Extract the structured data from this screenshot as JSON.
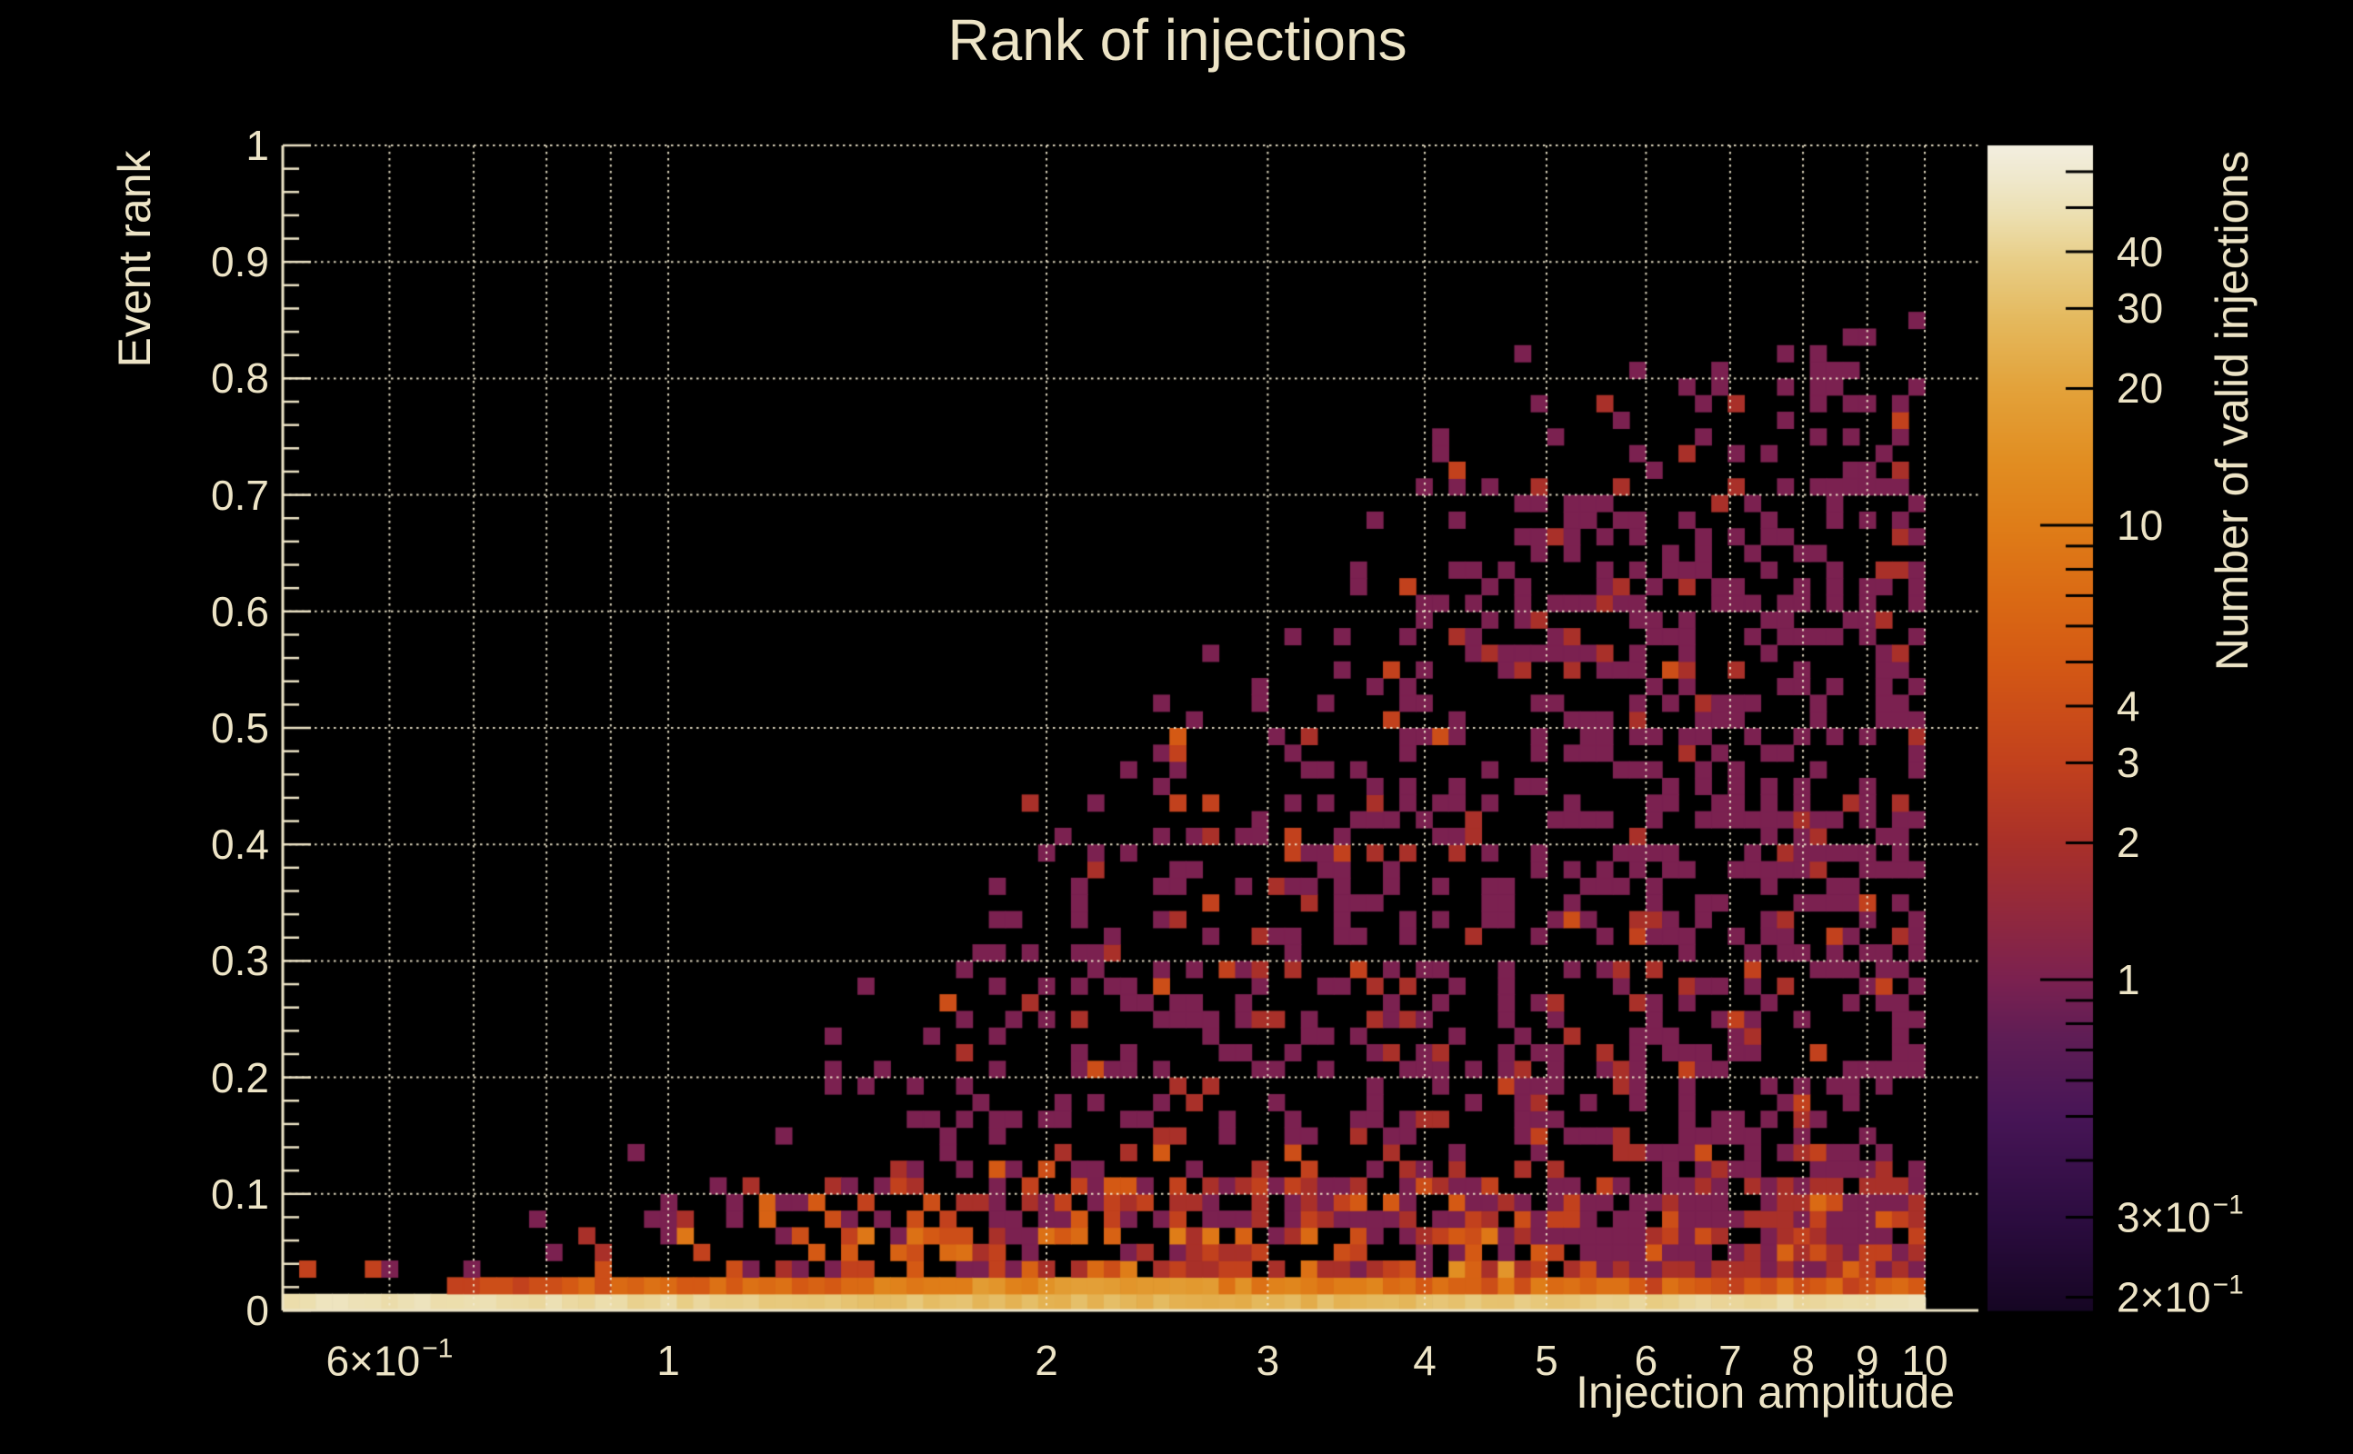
{
  "page": {
    "background": "#000000",
    "text_color": "#EDE4C6",
    "grid_color": "#F2E9CE",
    "axis_color": "#EDE4C6",
    "colorbar_tick_color": "#000000"
  },
  "chart_data": {
    "type": "heatmap",
    "title": "Rank of injections",
    "xlabel": "Injection amplitude",
    "ylabel": "Event rank",
    "zlabel": "Number of valid injections",
    "x_scale": "log",
    "x_range": [
      0.49,
      11.0
    ],
    "y_scale": "linear",
    "y_range": [
      0,
      1
    ],
    "z_scale": "log",
    "z_range": [
      0.187,
      68.7
    ],
    "grid": true,
    "legend_position": "right-colorbar",
    "x_ticks": [
      {
        "v": 0.6,
        "label": "6×10",
        "sup": "−1"
      },
      {
        "v": 1,
        "label": "1"
      },
      {
        "v": 2,
        "label": "2"
      },
      {
        "v": 3,
        "label": "3"
      },
      {
        "v": 4,
        "label": "4"
      },
      {
        "v": 5,
        "label": "5"
      },
      {
        "v": 6,
        "label": "6"
      },
      {
        "v": 7,
        "label": "7"
      },
      {
        "v": 8,
        "label": "8"
      },
      {
        "v": 9,
        "label": "9"
      },
      {
        "v": 10,
        "label": "10"
      }
    ],
    "x_gridlines": [
      0.6,
      0.7,
      0.8,
      0.9,
      1,
      2,
      3,
      4,
      5,
      6,
      7,
      8,
      9,
      10
    ],
    "y_ticks": [
      {
        "v": 0,
        "label": "0"
      },
      {
        "v": 0.1,
        "label": "0.1"
      },
      {
        "v": 0.2,
        "label": "0.2"
      },
      {
        "v": 0.3,
        "label": "0.3"
      },
      {
        "v": 0.4,
        "label": "0.4"
      },
      {
        "v": 0.5,
        "label": "0.5"
      },
      {
        "v": 0.6,
        "label": "0.6"
      },
      {
        "v": 0.7,
        "label": "0.7"
      },
      {
        "v": 0.8,
        "label": "0.8"
      },
      {
        "v": 0.9,
        "label": "0.9"
      },
      {
        "v": 1,
        "label": "1"
      }
    ],
    "y_minor_step": 0.02,
    "z_ticks": [
      {
        "v": 40,
        "label": "40"
      },
      {
        "v": 30,
        "label": "30"
      },
      {
        "v": 20,
        "label": "20"
      },
      {
        "v": 10,
        "label": "10"
      },
      {
        "v": 4,
        "label": "4"
      },
      {
        "v": 3,
        "label": "3"
      },
      {
        "v": 2,
        "label": "2"
      },
      {
        "v": 1,
        "label": "1"
      },
      {
        "v": 0.3,
        "label": "3×10",
        "sup": "−1"
      },
      {
        "v": 0.2,
        "label": "2×10",
        "sup": "−1"
      }
    ],
    "z_minor_ticks": [
      0.2,
      0.3,
      0.4,
      0.5,
      0.6,
      0.7,
      0.8,
      0.9,
      2,
      3,
      4,
      5,
      6,
      7,
      8,
      9,
      20,
      30,
      40,
      50,
      60
    ],
    "z_major_ticks": [
      1,
      10
    ],
    "colormap": [
      [
        0.18,
        "#140521"
      ],
      [
        0.3,
        "#2C0C40"
      ],
      [
        0.5,
        "#471556"
      ],
      [
        0.75,
        "#5F1D55"
      ],
      [
        1,
        "#7B2150"
      ],
      [
        2,
        "#A93029"
      ],
      [
        3,
        "#C2411D"
      ],
      [
        4,
        "#CC4E18"
      ],
      [
        5,
        "#D45914"
      ],
      [
        7,
        "#DA6A14"
      ],
      [
        10,
        "#DF7D18"
      ],
      [
        14,
        "#E18E22"
      ],
      [
        20,
        "#E3A23A"
      ],
      [
        28,
        "#E4B85C"
      ],
      [
        38,
        "#E8CD85"
      ],
      [
        48,
        "#ECDFB0"
      ],
      [
        58,
        "#EFE8CC"
      ],
      [
        70,
        "#F3EFE2"
      ]
    ],
    "envelope_points": [
      [
        0.5,
        0.045
      ],
      [
        0.62,
        0.06
      ],
      [
        0.75,
        0.1
      ],
      [
        0.9,
        0.12
      ],
      [
        1.1,
        0.16
      ],
      [
        1.3,
        0.24
      ],
      [
        1.5,
        0.3
      ],
      [
        1.8,
        0.37
      ],
      [
        2.1,
        0.46
      ],
      [
        2.5,
        0.54
      ],
      [
        3.0,
        0.6
      ],
      [
        3.5,
        0.65
      ],
      [
        4.0,
        0.73
      ],
      [
        4.6,
        0.78
      ],
      [
        5.5,
        0.8
      ],
      [
        6.5,
        0.83
      ],
      [
        8.0,
        0.87
      ],
      [
        10.0,
        0.88
      ]
    ],
    "generator": {
      "seed": 7,
      "nx": 100,
      "ny": 70,
      "x_min": 0.4935,
      "x_max": 10,
      "row0": {
        "base": 52,
        "dip": 26,
        "dip_center": 2.6,
        "dip_width": 0.42,
        "noise": 8,
        "min": 22,
        "max": 58
      },
      "row1": {
        "start_x": 0.67,
        "curve": [
          [
            0.67,
            3
          ],
          [
            1.2,
            8
          ],
          [
            2.0,
            14
          ],
          [
            3.0,
            12
          ],
          [
            4.0,
            8
          ],
          [
            6.0,
            6
          ],
          [
            10.0,
            5
          ]
        ],
        "jitter": [
          0.55,
          0.9
        ]
      },
      "density": {
        "base": 0.13,
        "slope": 0.38,
        "bottom_boost": 0.38,
        "low_extra": 0.15,
        "fade": [
          2.4,
          2.1
        ],
        "fade_min": 0.18,
        "left_damp": 0.65,
        "outlier_p": 0.03,
        "outlier_band": 1.08
      },
      "counts": {
        "scale": 0.55,
        "b_low": 2.6,
        "b_mid": 1.9,
        "b_hi": 1.25,
        "mid_bump_center": 2.5,
        "mid_bump_width": 0.28,
        "mid_bump_amp": 0.9,
        "cap": 28
      }
    }
  }
}
